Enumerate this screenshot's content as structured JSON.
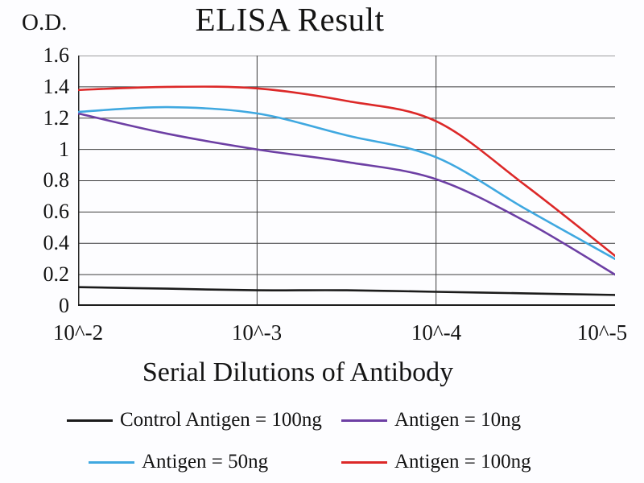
{
  "chart_data": {
    "type": "line",
    "title": "ELISA Result",
    "xlabel": "Serial Dilutions of Antibody",
    "ylabel": "O.D.",
    "x_tick_labels": [
      "10^-2",
      "10^-3",
      "10^-4",
      "10^-5"
    ],
    "y_tick_labels": [
      "1.6",
      "1.4",
      "1.2",
      "1",
      "0.8",
      "0.6",
      "0.4",
      "0.2",
      "0"
    ],
    "y_ticks": [
      0,
      0.2,
      0.4,
      0.6,
      0.8,
      1.0,
      1.2,
      1.4,
      1.6
    ],
    "ylim": [
      0,
      1.6
    ],
    "x_exponents": [
      -2,
      -2.5,
      -3,
      -3.5,
      -4,
      -4.5,
      -5
    ],
    "xlim_exponents": [
      -2,
      -5
    ],
    "grid": true,
    "legend_position": "bottom",
    "series": [
      {
        "name": "Control Antigen = 100ng",
        "color": "#1b1b1b",
        "values": [
          0.12,
          0.11,
          0.1,
          0.1,
          0.09,
          0.08,
          0.07
        ]
      },
      {
        "name": "Antigen = 10ng",
        "color": "#6d3fa4",
        "values": [
          1.23,
          1.1,
          1.0,
          0.92,
          0.81,
          0.54,
          0.2
        ]
      },
      {
        "name": "Antigen = 50ng",
        "color": "#3fa8e0",
        "values": [
          1.24,
          1.27,
          1.23,
          1.09,
          0.95,
          0.62,
          0.3
        ]
      },
      {
        "name": "Antigen = 100ng",
        "color": "#dc2828",
        "values": [
          1.38,
          1.4,
          1.39,
          1.31,
          1.18,
          0.77,
          0.32
        ]
      }
    ]
  }
}
